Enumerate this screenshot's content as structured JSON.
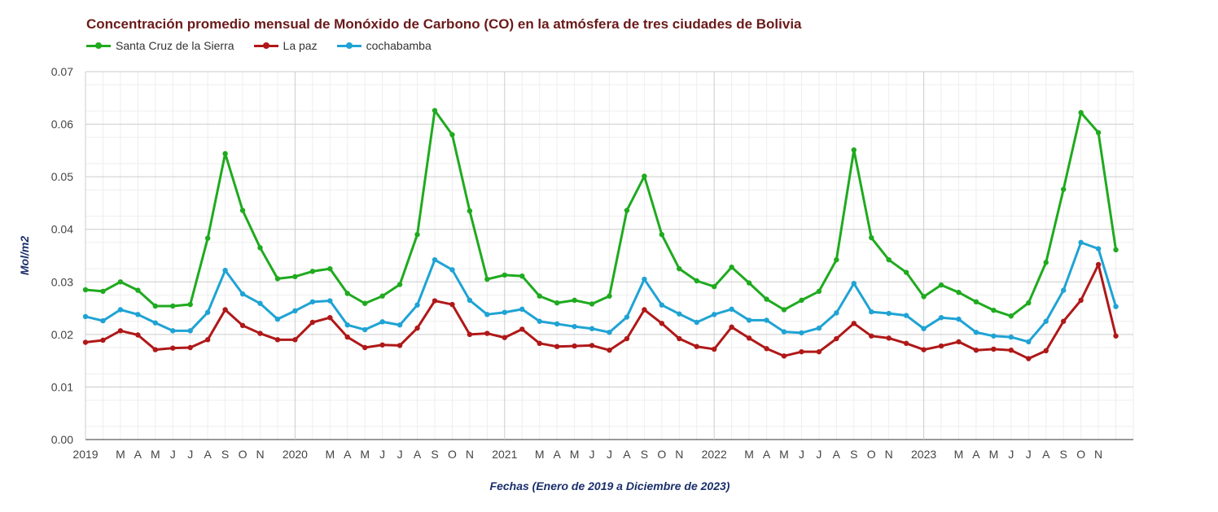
{
  "chart_data": {
    "type": "line",
    "title": "Concentración promedio mensual de Monóxido de Carbono (CO) en la atmósfera de tres ciudades de Bolivia",
    "xlabel": "Fechas (Enero de 2019 a Diciembre de 2023)",
    "ylabel": "Mol/m2",
    "ylim": [
      0,
      0.07
    ],
    "yticks": [
      "0.00",
      "0.01",
      "0.02",
      "0.03",
      "0.04",
      "0.05",
      "0.06",
      "0.07"
    ],
    "grid": true,
    "legend_position": "top-left",
    "x_tick_labels": [
      "2019",
      "",
      "M",
      "A",
      "M",
      "J",
      "J",
      "A",
      "S",
      "O",
      "N",
      "",
      "2020",
      "",
      "M",
      "A",
      "M",
      "J",
      "J",
      "A",
      "S",
      "O",
      "N",
      "",
      "2021",
      "",
      "M",
      "A",
      "M",
      "J",
      "J",
      "A",
      "S",
      "O",
      "N",
      "",
      "2022",
      "",
      "M",
      "A",
      "M",
      "J",
      "J",
      "A",
      "S",
      "O",
      "N",
      "",
      "2023",
      "",
      "M",
      "A",
      "M",
      "J",
      "J",
      "A",
      "S",
      "O",
      "N",
      ""
    ],
    "series": [
      {
        "name": "Santa Cruz de la Sierra",
        "color": "#1faa1f",
        "values": [
          0.0285,
          0.0282,
          0.03,
          0.0284,
          0.0254,
          0.0254,
          0.0257,
          0.0383,
          0.0544,
          0.0436,
          0.0365,
          0.0306,
          0.031,
          0.032,
          0.0325,
          0.0278,
          0.0259,
          0.0273,
          0.0295,
          0.039,
          0.0626,
          0.058,
          0.0435,
          0.0305,
          0.0313,
          0.0311,
          0.0273,
          0.026,
          0.0265,
          0.0258,
          0.0273,
          0.0436,
          0.0501,
          0.039,
          0.0325,
          0.0302,
          0.0291,
          0.0328,
          0.0298,
          0.0267,
          0.0247,
          0.0265,
          0.0282,
          0.0342,
          0.0551,
          0.0384,
          0.0342,
          0.0318,
          0.0272,
          0.0294,
          0.028,
          0.0262,
          0.0246,
          0.0235,
          0.026,
          0.0337,
          0.0476,
          0.0622,
          0.0584,
          0.0361
        ]
      },
      {
        "name": "La paz",
        "color": "#b01818",
        "values": [
          0.0185,
          0.0189,
          0.0207,
          0.0199,
          0.0171,
          0.0174,
          0.0175,
          0.019,
          0.0247,
          0.0217,
          0.0202,
          0.019,
          0.019,
          0.0223,
          0.0232,
          0.0195,
          0.0175,
          0.018,
          0.0179,
          0.0212,
          0.0264,
          0.0257,
          0.02,
          0.0202,
          0.0194,
          0.021,
          0.0183,
          0.0177,
          0.0178,
          0.0179,
          0.017,
          0.0192,
          0.0247,
          0.0221,
          0.0192,
          0.0177,
          0.0172,
          0.0214,
          0.0193,
          0.0173,
          0.0159,
          0.0167,
          0.0167,
          0.0192,
          0.0221,
          0.0197,
          0.0193,
          0.0183,
          0.0171,
          0.0178,
          0.0186,
          0.017,
          0.0172,
          0.017,
          0.0154,
          0.0169,
          0.0225,
          0.0265,
          0.0333,
          0.0197
        ]
      },
      {
        "name": "cochabamba",
        "color": "#1fa3d4",
        "values": [
          0.0234,
          0.0226,
          0.0247,
          0.0238,
          0.0222,
          0.0207,
          0.0207,
          0.0242,
          0.0322,
          0.0277,
          0.0259,
          0.0229,
          0.0245,
          0.0262,
          0.0264,
          0.0218,
          0.0209,
          0.0224,
          0.0218,
          0.0256,
          0.0342,
          0.0323,
          0.0265,
          0.0238,
          0.0242,
          0.0248,
          0.0225,
          0.022,
          0.0215,
          0.0211,
          0.0204,
          0.0233,
          0.0305,
          0.0256,
          0.0239,
          0.0223,
          0.0238,
          0.0248,
          0.0227,
          0.0227,
          0.0205,
          0.0203,
          0.0212,
          0.0241,
          0.0297,
          0.0243,
          0.024,
          0.0236,
          0.0211,
          0.0232,
          0.0229,
          0.0204,
          0.0197,
          0.0195,
          0.0186,
          0.0225,
          0.0284,
          0.0375,
          0.0363,
          0.0253
        ]
      }
    ]
  }
}
